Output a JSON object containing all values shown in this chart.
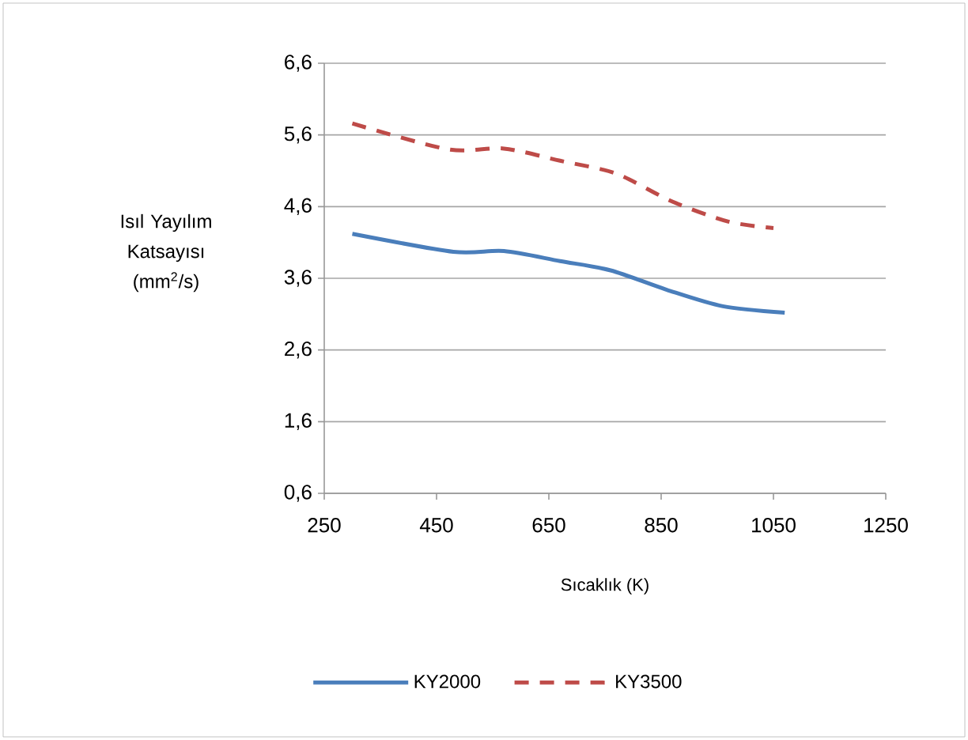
{
  "chart_data": {
    "type": "line",
    "xlabel": "Sıcaklık (K)",
    "ylabel": "Isıl Yayılım Katsayısı (mm$^{2}$/s)",
    "xlim": [
      250,
      1250
    ],
    "xticks": [
      250,
      450,
      650,
      850,
      1050,
      1250
    ],
    "ylim": [
      0.6,
      6.6
    ],
    "yticks": [
      {
        "value": 0.6,
        "label": "0,6"
      },
      {
        "value": 1.6,
        "label": "1,6"
      },
      {
        "value": 2.6,
        "label": "2,6"
      },
      {
        "value": 3.6,
        "label": "3,6"
      },
      {
        "value": 4.6,
        "label": "4,6"
      },
      {
        "value": 5.6,
        "label": "5,6"
      },
      {
        "value": 6.6,
        "label": "6,6"
      }
    ],
    "grid": "y",
    "legend": "bottom",
    "marker": "none",
    "series": [
      {
        "name": "KY2000",
        "color": "#4a7ebb",
        "line_style": "solid",
        "x": [
          300,
          480,
          570,
          670,
          760,
          860,
          960,
          1070
        ],
        "values": [
          4.22,
          3.97,
          3.98,
          3.84,
          3.71,
          3.44,
          3.21,
          3.12
        ]
      },
      {
        "name": "KY3500",
        "color": "#be4b48",
        "line_style": "dashed",
        "x": [
          300,
          470,
          570,
          670,
          770,
          870,
          970,
          1050
        ],
        "values": [
          5.76,
          5.4,
          5.41,
          5.24,
          5.06,
          4.67,
          4.39,
          4.3
        ]
      }
    ]
  }
}
